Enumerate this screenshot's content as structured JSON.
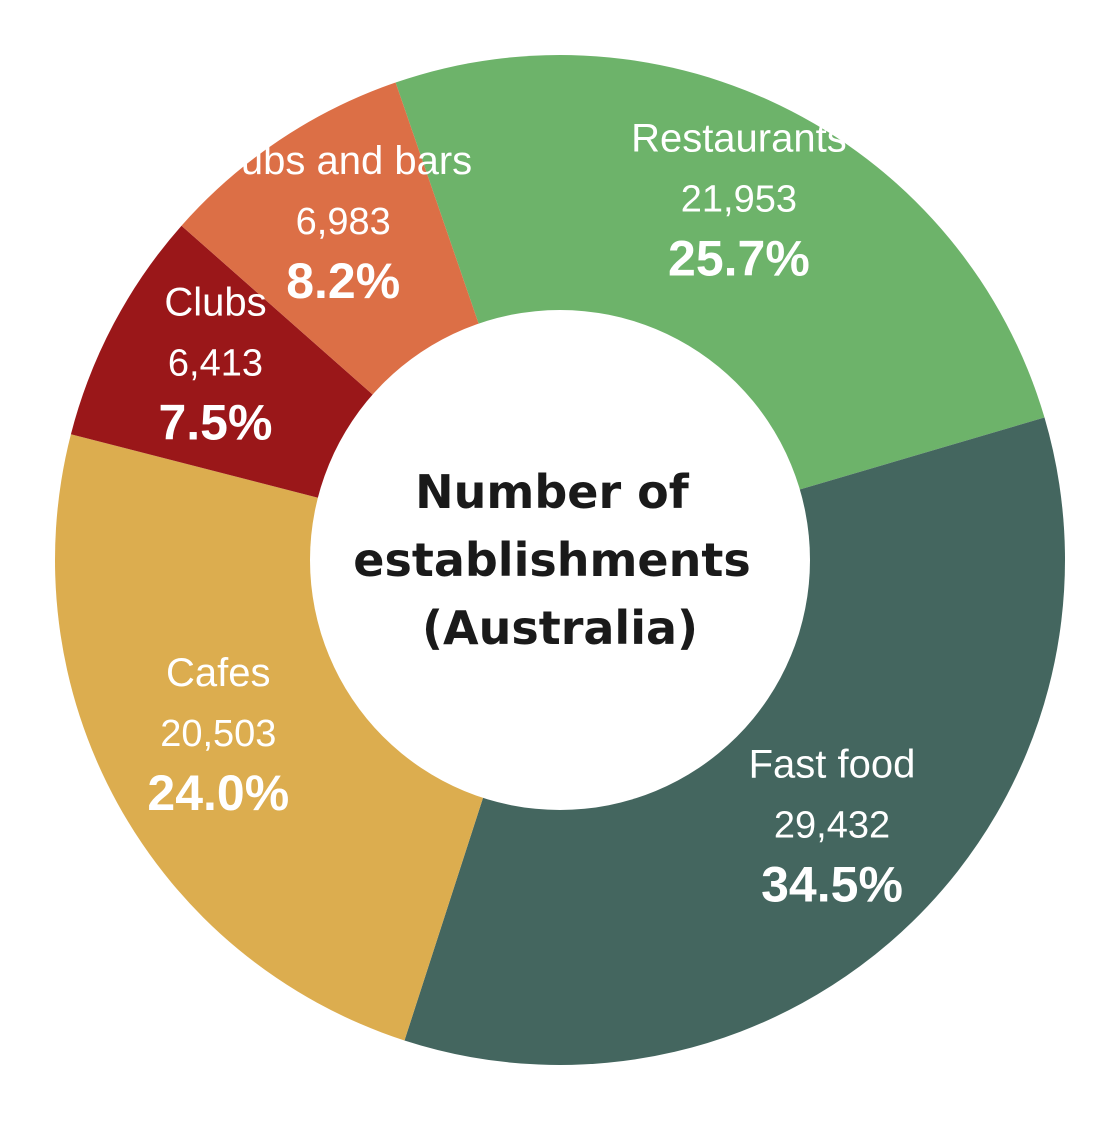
{
  "chart_data": {
    "type": "pie",
    "variant": "donut",
    "center_title_lines": [
      "Number of",
      "establishments",
      "(Australia)"
    ],
    "slices": [
      {
        "label": "Restaurants",
        "count": "21,953",
        "percent": "25.7%",
        "value": 25.7,
        "color": "#6db36a"
      },
      {
        "label": "Fast food",
        "count": "29,432",
        "percent": "34.5%",
        "value": 34.5,
        "color": "#44665f"
      },
      {
        "label": "Cafes",
        "count": "20,503",
        "percent": "24.0%",
        "value": 24.0,
        "color": "#dcad4f"
      },
      {
        "label": "Clubs",
        "count": "6,413",
        "percent": "7.5%",
        "value": 7.5,
        "color": "#9a1719"
      },
      {
        "label": "Pubs and bars",
        "count": "6,983",
        "percent": "8.2%",
        "value": 8.2,
        "color": "#dc6f46"
      }
    ]
  }
}
